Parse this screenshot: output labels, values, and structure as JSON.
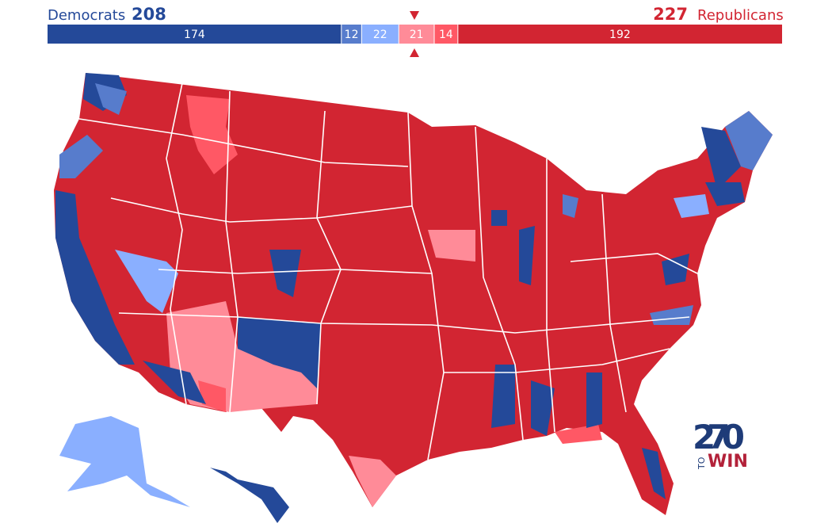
{
  "header": {
    "dem_label": "Democrats",
    "dem_total": 208,
    "rep_total": 227,
    "rep_label": "Republicans"
  },
  "bar": {
    "segments": [
      {
        "value": 174,
        "color": "#244999"
      },
      {
        "value": 12,
        "color": "#577ccc"
      },
      {
        "value": 22,
        "color": "#8aafff"
      },
      {
        "value": 21,
        "color": "#ff8b98"
      },
      {
        "value": 14,
        "color": "#ff5865"
      },
      {
        "value": 192,
        "color": "#d22532"
      }
    ]
  },
  "logo": {
    "number": "270",
    "small": "TO",
    "word": "WIN"
  }
}
